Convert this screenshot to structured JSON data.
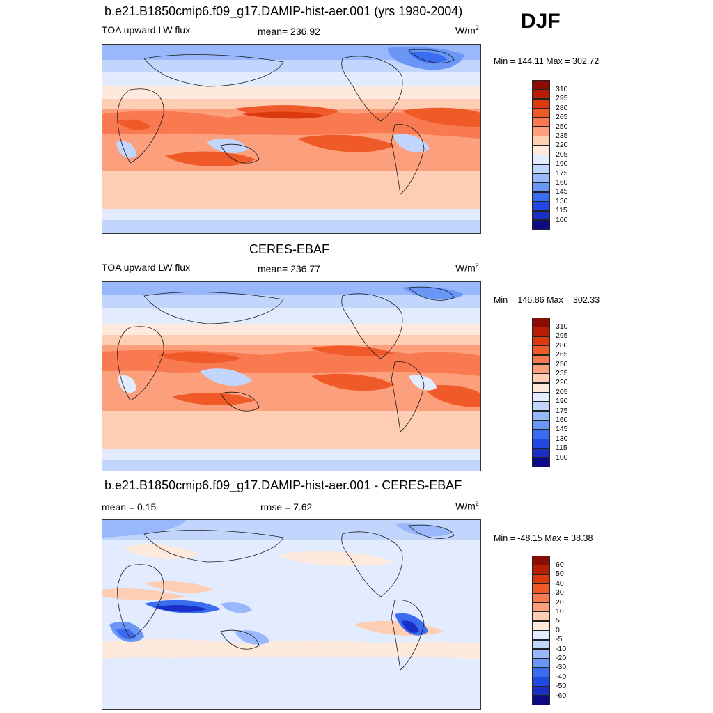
{
  "season": "DJF",
  "colors": {
    "abs_scale": [
      "#0c0a86",
      "#1a2ec8",
      "#2248e4",
      "#3a6cf0",
      "#6a96f6",
      "#98b8fb",
      "#c2d6fd",
      "#e2ecfe",
      "#feeadc",
      "#fdcdb4",
      "#fc9f7c",
      "#f97a50",
      "#ef5a28",
      "#db3a0e",
      "#b81e06",
      "#8c0c04"
    ],
    "diff_scale": [
      "#0c0a86",
      "#1a2ec8",
      "#2248e4",
      "#3a6cf0",
      "#6a96f6",
      "#98b8fb",
      "#c2d6fd",
      "#e2ecfe",
      "#feeadc",
      "#fdcdb4",
      "#fc9f7c",
      "#f97a50",
      "#ef5a28",
      "#db3a0e",
      "#b81e06",
      "#8c0c04"
    ],
    "land_outline": "#1a1a1a"
  },
  "panels": [
    {
      "title": "b.e21.B1850cmip6.f09_g17.DAMIP-hist-aer.001 (yrs 1980-2004)",
      "left_label": "TOA upward LW flux",
      "center_label": "mean= 236.92",
      "unit": "W/m",
      "unit_sup": "2",
      "minmax": "Min = 144.11 Max = 302.72"
    },
    {
      "title": "CERES-EBAF",
      "left_label": "TOA upward LW flux",
      "center_label": "mean= 236.77",
      "unit": "W/m",
      "unit_sup": "2",
      "minmax": "Min = 146.86 Max = 302.33"
    },
    {
      "title": "b.e21.B1850cmip6.f09_g17.DAMIP-hist-aer.001 - CERES-EBAF",
      "left_label": "mean =   0.15",
      "center_label": "rmse =   7.62",
      "unit": "W/m",
      "unit_sup": "2",
      "minmax": "Min = -48.15 Max =  38.38"
    }
  ],
  "colorbars": {
    "abs_labels": [
      "310",
      "295",
      "280",
      "265",
      "250",
      "235",
      "220",
      "205",
      "190",
      "175",
      "160",
      "145",
      "130",
      "115",
      "100"
    ],
    "diff_labels": [
      "60",
      "50",
      "40",
      "30",
      "20",
      "10",
      "5",
      "0",
      "-5",
      "-10",
      "-20",
      "-30",
      "-40",
      "-50",
      "-60"
    ]
  },
  "chart_data": {
    "type": "heatmap",
    "variable": "TOA upward LW flux",
    "season": "DJF",
    "projection": "cylindrical equidistant, global, centered on Pacific",
    "panels": [
      {
        "name": "b.e21.B1850cmip6.f09_g17.DAMIP-hist-aer.001 (yrs 1980-2004)",
        "mean": 236.92,
        "min": 144.11,
        "max": 302.72,
        "levels": [
          100,
          115,
          130,
          145,
          160,
          175,
          190,
          205,
          220,
          235,
          250,
          265,
          280,
          295,
          310
        ]
      },
      {
        "name": "CERES-EBAF",
        "mean": 236.77,
        "min": 146.86,
        "max": 302.33,
        "levels": [
          100,
          115,
          130,
          145,
          160,
          175,
          190,
          205,
          220,
          235,
          250,
          265,
          280,
          295,
          310
        ]
      },
      {
        "name": "b.e21.B1850cmip6.f09_g17.DAMIP-hist-aer.001 - CERES-EBAF",
        "mean": 0.15,
        "rmse": 7.62,
        "min": -48.15,
        "max": 38.38,
        "levels": [
          -60,
          -50,
          -40,
          -30,
          -20,
          -10,
          -5,
          0,
          5,
          10,
          20,
          30,
          40,
          50,
          60
        ]
      }
    ]
  }
}
